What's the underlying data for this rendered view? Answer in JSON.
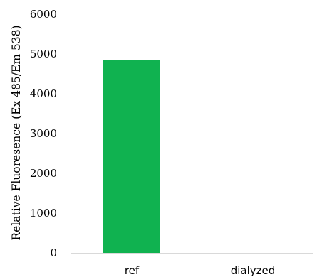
{
  "chart_data": {
    "type": "bar",
    "categories": [
      "ref",
      "dialyzed"
    ],
    "values": [
      4840,
      0
    ],
    "xlabel": "",
    "ylabel": "Relative Fluoresence (Ex 485/Em 538)",
    "ylim": [
      0,
      6000
    ],
    "yticks": [
      "0",
      "1000",
      "2000",
      "3000",
      "4000",
      "5000",
      "6000"
    ],
    "grid": false,
    "legend": "none",
    "bar_color": "#10b250",
    "axis_color": "#d9d9d9"
  }
}
